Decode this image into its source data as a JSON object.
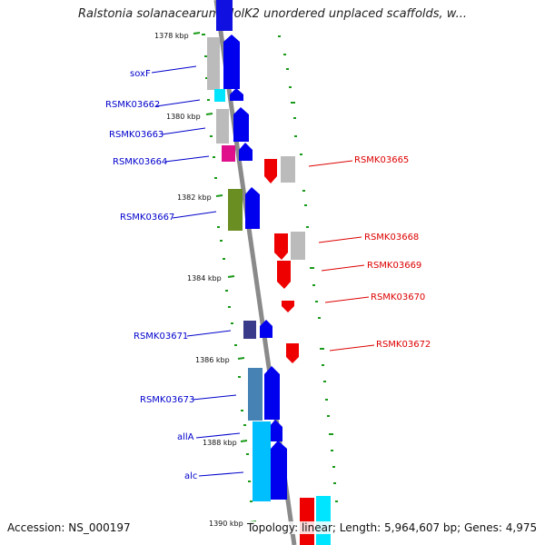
{
  "title": "Ralstonia solanacearum MolK2 unordered unplaced scaffolds, w...",
  "footer": {
    "accession": "Accession: NS_000197",
    "summary": "Topology: linear; Length: 5,964,607 bp; Genes: 4,975"
  },
  "colors": {
    "left_label": "#0000cc",
    "right_label": "#dd0000",
    "tick": "#007700",
    "axis": "#888888"
  },
  "ticks": [
    "1378 kbp",
    "1380 kbp",
    "1382 kbp",
    "1384 kbp",
    "1386 kbp",
    "1388 kbp",
    "1390 kbp"
  ],
  "left_labels": [
    "soxF",
    "RSMK03662",
    "RSMK03663",
    "RSMK03664",
    "RSMK03667",
    "RSMK03671",
    "RSMK03673",
    "allA",
    "alc"
  ],
  "right_labels": [
    "RSMK03665",
    "RSMK03668",
    "RSMK03669",
    "RSMK03670",
    "RSMK03672"
  ]
}
